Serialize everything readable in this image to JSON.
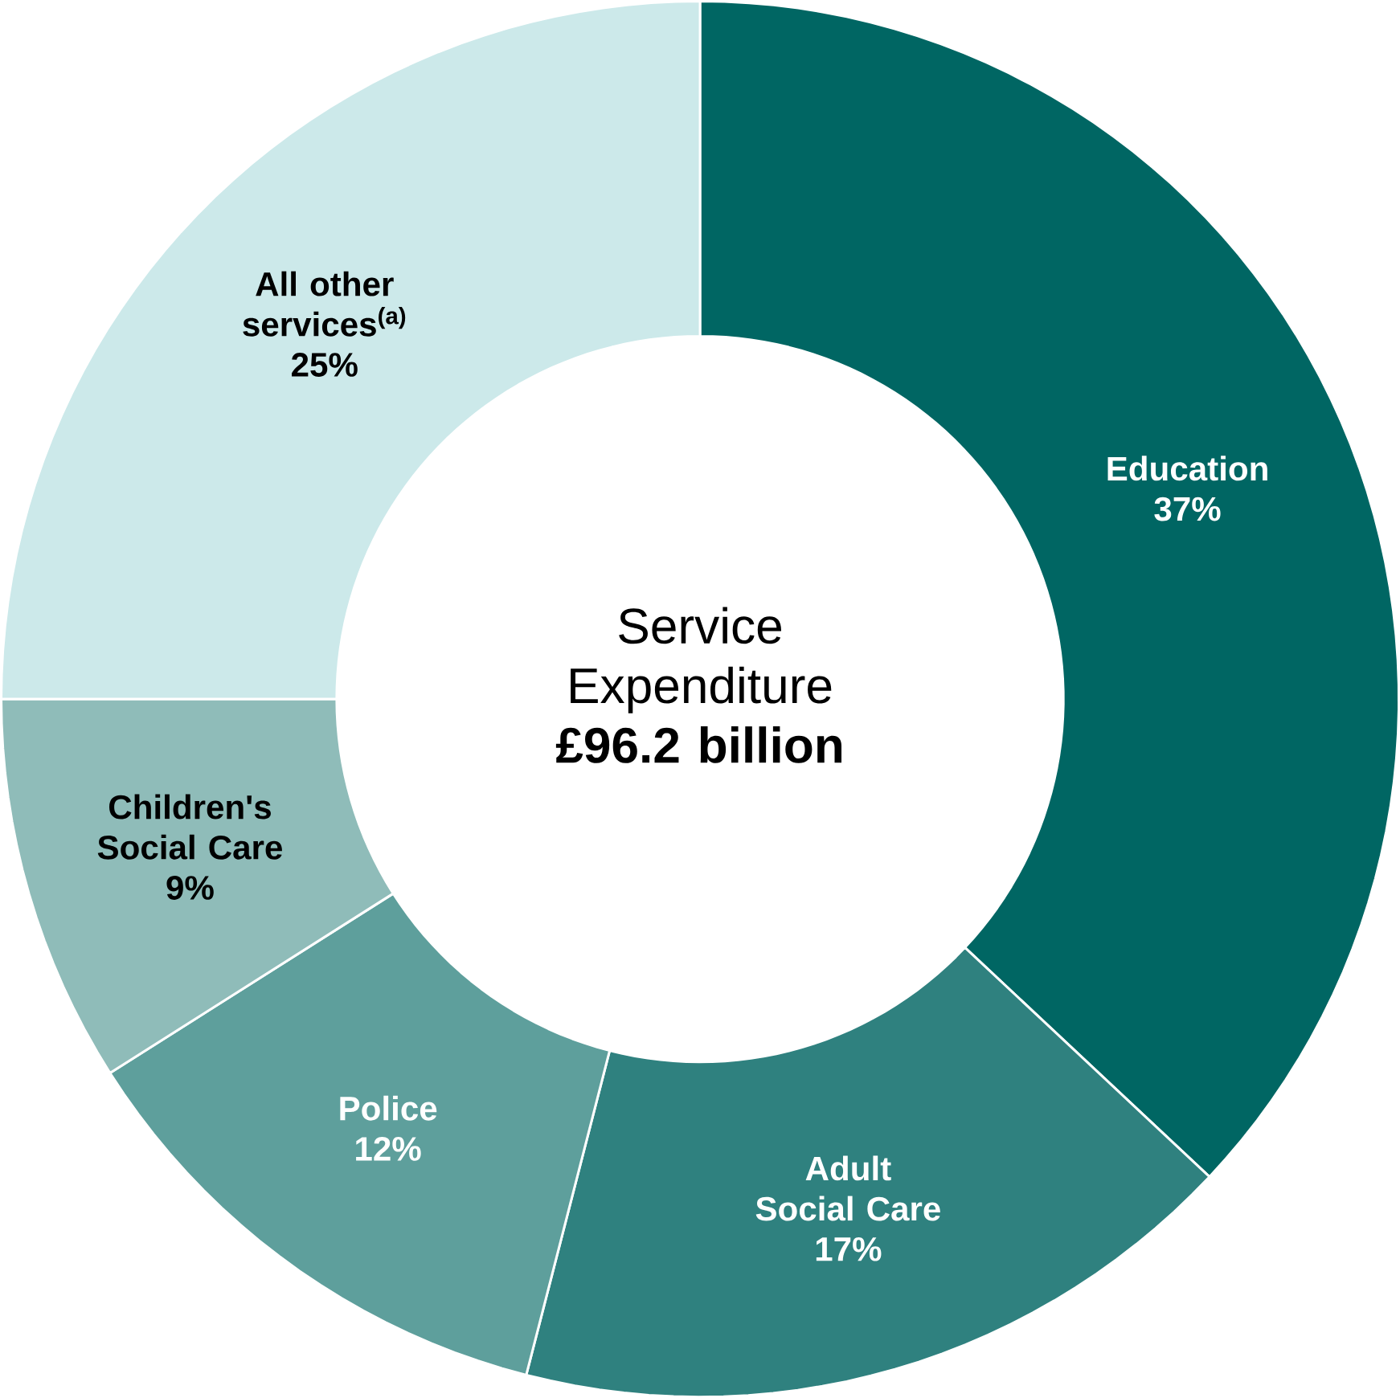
{
  "chart_data": {
    "type": "donut",
    "title": "Service Expenditure",
    "subtitle": "£96.2 billion",
    "categories": [
      "Education",
      "Adult Social Care",
      "Police",
      "Children's Social Care",
      "All other services$^{(a)}$"
    ],
    "values": [
      37,
      17,
      12,
      9,
      25
    ],
    "value_labels": [
      "37%",
      "17%",
      "12%",
      "9%",
      "25%"
    ],
    "colors": [
      "#006663",
      "#2f817f",
      "#5e9f9c",
      "#8fbcb9",
      "#cce9ea"
    ]
  }
}
